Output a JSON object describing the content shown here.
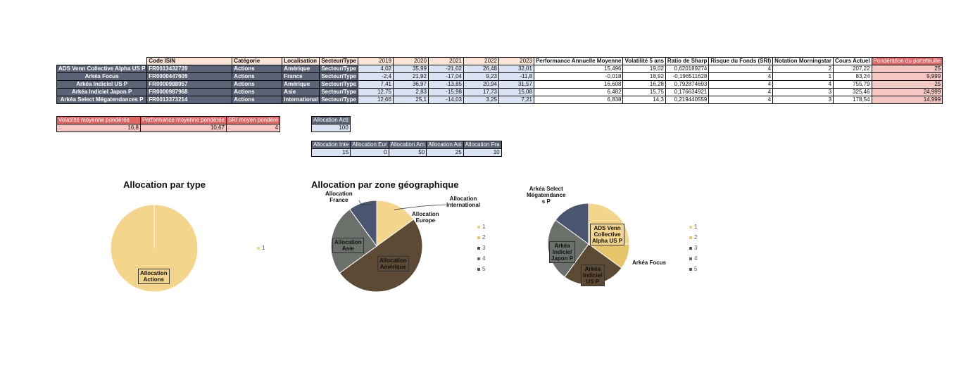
{
  "main_table": {
    "headers": [
      "Code ISIN",
      "Catégorie",
      "Localisation",
      "Secteur/Type",
      "2019",
      "2020",
      "2021",
      "2022",
      "2023",
      "Performance Annuelle Moyenne",
      "Volatilité 5 ans",
      "Ratio de Sharp",
      "Risque du Fonds (SRI)",
      "Notation Morningstar",
      "Cours Actuel",
      "Pondération du portefeuille"
    ],
    "rows": [
      {
        "name": "ADS Venn Collective Alpha US P",
        "isin": "FR0013432739",
        "cat": "Actions",
        "loc": "Amérique",
        "sect": "Secteur/Type",
        "y2019": "4,02",
        "y2020": "35,99",
        "y2021": "-21,02",
        "y2022": "26,48",
        "y2023": "32,01",
        "perf": "15,496",
        "vol": "19,02",
        "sharp": "0,620189274",
        "sri": "4",
        "ms": "2",
        "cours": "207,22",
        "pond": "25"
      },
      {
        "name": "Arkéa Focus",
        "isin": "FR0000447609",
        "cat": "Actions",
        "loc": "France",
        "sect": "Secteur/Type",
        "y2019": "-2,4",
        "y2020": "21,92",
        "y2021": "-17,04",
        "y2022": "9,23",
        "y2023": "-11,8",
        "perf": "-0,018",
        "vol": "18,92",
        "sharp": "-0,196511628",
        "sri": "4",
        "ms": "1",
        "cours": "83,24",
        "pond": "9,999"
      },
      {
        "name": "Arkéa Indiciel US P",
        "isin": "FR0000988057",
        "cat": "Actions",
        "loc": "Amérique",
        "sect": "Secteur/Type",
        "y2019": "7,41",
        "y2020": "36,97",
        "y2021": "-13,85",
        "y2022": "20,94",
        "y2023": "31,57",
        "perf": "16,608",
        "vol": "16,28",
        "sharp": "0,792874693",
        "sri": "4",
        "ms": "4",
        "cours": "755,79",
        "pond": "25"
      },
      {
        "name": "Arkéa Indiciel Japon P",
        "isin": "FR0000987968",
        "cat": "Actions",
        "loc": "Asie",
        "sect": "Secteur/Type",
        "y2019": "12,75",
        "y2020": "2,83",
        "y2021": "-15,98",
        "y2022": "17,73",
        "y2023": "15,08",
        "perf": "6,482",
        "vol": "15,75",
        "sharp": "0,176634921",
        "sri": "4",
        "ms": "3",
        "cours": "325,46",
        "pond": "24,999"
      },
      {
        "name": "Arkéa Select Mégatendances P",
        "isin": "FR0013373214",
        "cat": "Actions",
        "loc": "International",
        "sect": "Secteur/Type",
        "y2019": "12,66",
        "y2020": "25,1",
        "y2021": "-14,03",
        "y2022": "3,25",
        "y2023": "7,21",
        "perf": "6,838",
        "vol": "14,3",
        "sharp": "0,219440559",
        "sri": "4",
        "ms": "3",
        "cours": "178,54",
        "pond": "14,999"
      }
    ]
  },
  "summary": {
    "vol_label": "Volatilité moyenne pondérée",
    "vol_value": "16,8",
    "perf_label": "Performance moyenne pondérée",
    "perf_value": "10,67",
    "sri_label": "SRI moyen pondéré",
    "sri_value": "4"
  },
  "alloc_actions": {
    "label": "Allocation Acti",
    "value": "100"
  },
  "alloc_zones": {
    "headers": [
      "Allocation Inte",
      "Allocation Eur",
      "Allocation Am",
      "Allocation Asi",
      "Allocation Fra"
    ],
    "values": [
      "15",
      "0",
      "50",
      "25",
      "10"
    ]
  },
  "chart1": {
    "title": "Allocation par type",
    "slice_label_1": "Allocation",
    "slice_label_2": "Actions",
    "legend": [
      "1"
    ]
  },
  "chart2": {
    "title": "Allocation par zone géographique",
    "labels": {
      "france_1": "Allocation",
      "france_2": "France",
      "intl_1": "Allocation",
      "intl_2": "International",
      "europe_1": "Allocation",
      "europe_2": "Europe",
      "asie_1": "Allocation",
      "asie_2": "Asie",
      "amer_1": "Allocation",
      "amer_2": "Amérique"
    },
    "legend": [
      "1",
      "2",
      "3",
      "4",
      "5"
    ]
  },
  "chart3": {
    "labels": {
      "mega_1": "Arkéa Select",
      "mega_2": "Mégatendance",
      "mega_3": "s P",
      "ads_1": "ADS Venn",
      "ads_2": "Collective",
      "ads_3": "Alpha US P",
      "focus": "Arkéa Focus",
      "japon_1": "Arkéa",
      "japon_2": "Indiciel",
      "japon_3": "Japon P",
      "us_1": "Arkéa",
      "us_2": "Indiciel",
      "us_3": "US P"
    },
    "legend": [
      "1",
      "2",
      "3",
      "4",
      "5"
    ]
  },
  "chart_data": [
    {
      "type": "pie",
      "title": "Allocation par type",
      "categories": [
        "Allocation Actions"
      ],
      "values": [
        100
      ]
    },
    {
      "type": "pie",
      "title": "Allocation par zone géographique",
      "categories": [
        "Allocation International",
        "Allocation Europe",
        "Allocation Amérique",
        "Allocation Asie",
        "Allocation France"
      ],
      "values": [
        15,
        0,
        50,
        25,
        10
      ]
    },
    {
      "type": "pie",
      "title": "",
      "categories": [
        "ADS Venn Collective Alpha US P",
        "Arkéa Focus",
        "Arkéa Indiciel US P",
        "Arkéa Indiciel Japon P",
        "Arkéa Select Mégatendances P"
      ],
      "values": [
        25,
        9.999,
        25,
        24.999,
        14.999
      ]
    }
  ],
  "colors": {
    "c1": "#f3d68b",
    "c2": "#e6c46a",
    "c3": "#5c4a34",
    "c4": "#6b706b",
    "c5": "#4a5670",
    "header_slate": "#5b6477",
    "lavender": "#dae3f3",
    "pink": "#f4c7c3",
    "red": "#e06666",
    "peach": "#fbe3d6"
  }
}
